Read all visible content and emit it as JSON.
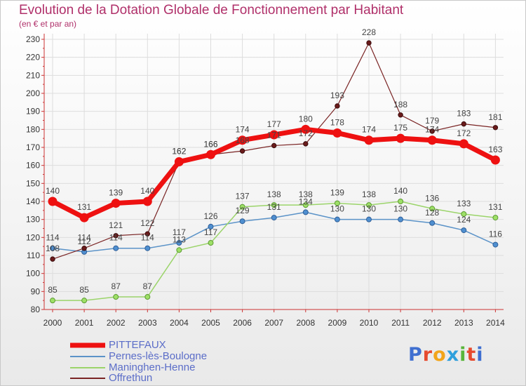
{
  "title": "Evolution de la Dotation Globale de Fonctionnement par Habitant",
  "subtitle": "(en € et par an)",
  "logo": {
    "text": "Proxiti",
    "colors": [
      "#3f6fd0",
      "#e64a2e",
      "#f2a51a",
      "#2f9fdc",
      "#59b53a",
      "#e64a2e",
      "#3f6fd0"
    ]
  },
  "chart_data": {
    "type": "line",
    "title": "Evolution de la Dotation Globale de Fonctionnement par Habitant",
    "ylabel": "(en € et par an)",
    "xlabel": "",
    "ylim": [
      80,
      230
    ],
    "yticks": [
      80,
      90,
      100,
      110,
      120,
      130,
      140,
      150,
      160,
      170,
      180,
      190,
      200,
      210,
      220,
      230
    ],
    "categories": [
      "2000",
      "2001",
      "2002",
      "2003",
      "2004",
      "2005",
      "2006",
      "2007",
      "2008",
      "2009",
      "2010",
      "2011",
      "2012",
      "2013",
      "2014"
    ],
    "series": [
      {
        "name": "PITTEFAUX",
        "color": "#ee1111",
        "values": [
          140,
          131,
          139,
          140,
          162,
          166,
          174,
          177,
          180,
          178,
          174,
          175,
          174,
          172,
          163
        ]
      },
      {
        "name": "Pernes-lès-Boulogne",
        "color": "#5b93c8",
        "values": [
          114,
          112,
          114,
          114,
          117,
          126,
          129,
          131,
          134,
          130,
          130,
          130,
          128,
          124,
          116
        ]
      },
      {
        "name": "Maninghen-Henne",
        "color": "#9bd46a",
        "values": [
          85,
          85,
          87,
          87,
          113,
          117,
          137,
          138,
          138,
          139,
          138,
          140,
          136,
          133,
          131
        ]
      },
      {
        "name": "Offrethun",
        "color": "#7a2424",
        "values": [
          108,
          114,
          121,
          122,
          162,
          166,
          168,
          171,
          172,
          193,
          228,
          188,
          179,
          183,
          181
        ]
      }
    ],
    "data_labels": [
      {
        "series": 0,
        "values": [
          "140",
          "131",
          "139",
          "140",
          "162",
          "166",
          "174",
          "177",
          "180",
          "178",
          "174",
          "175",
          "174",
          "172",
          "163"
        ]
      },
      {
        "series": 1,
        "values": [
          "114",
          "112",
          "114",
          "114",
          "117",
          "126",
          "129",
          "131",
          "134",
          "130",
          "130",
          "130",
          "128",
          "124",
          "116"
        ]
      },
      {
        "series": 2,
        "values": [
          "85",
          "85",
          "87",
          "87",
          "113",
          "117",
          "137",
          "138",
          "138",
          "139",
          "138",
          "140",
          "136",
          "133",
          "131"
        ]
      },
      {
        "series": 3,
        "values": [
          "108",
          "114",
          "121",
          "122",
          "162",
          "166",
          "168",
          "171",
          "172",
          "193",
          "228",
          "188",
          "179",
          "183",
          "181"
        ]
      }
    ],
    "grid": true,
    "legend": "bottom-left"
  }
}
